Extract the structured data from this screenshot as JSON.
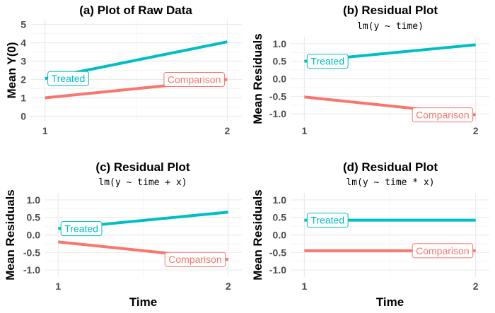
{
  "colors": {
    "treated": "#00BFC4",
    "comparison": "#F8766D",
    "grid_major": "#ebebeb",
    "grid_minor": "#f5f5f5"
  },
  "chart_data": [
    {
      "id": "a",
      "type": "line",
      "title": "(a) Plot of Raw Data",
      "subtitle": "",
      "xlabel": "",
      "ylabel": "Mean Y(0)",
      "x": [
        1,
        2
      ],
      "xlim": [
        0.92,
        2.08
      ],
      "ylim": [
        -0.25,
        5.25
      ],
      "yticks": [
        0,
        1,
        2,
        3,
        4,
        5
      ],
      "ytick_labels": [
        "0",
        "1",
        "2",
        "3",
        "4",
        "5"
      ],
      "xticks": [
        1,
        2
      ],
      "xtick_labels": [
        "1",
        "2"
      ],
      "series": [
        {
          "name": "Treated",
          "key": "treated",
          "values": [
            2.05,
            4.05
          ],
          "label_at": "start"
        },
        {
          "name": "Comparison",
          "key": "comparison",
          "values": [
            1.0,
            2.0
          ],
          "label_at": "end"
        }
      ]
    },
    {
      "id": "b",
      "type": "line",
      "title": "(b) Residual Plot",
      "subtitle": "lm(y ~ time)",
      "xlabel": "",
      "ylabel": "Mean Residuals",
      "x": [
        1,
        2
      ],
      "xlim": [
        0.92,
        2.08
      ],
      "ylim": [
        -1.2,
        1.2
      ],
      "yticks": [
        -1.0,
        -0.5,
        0.0,
        0.5,
        1.0
      ],
      "ytick_labels": [
        "-1.0",
        "-0.5",
        "0.0",
        "0.5",
        "1.0"
      ],
      "xticks": [
        1,
        2
      ],
      "xtick_labels": [
        "1",
        "2"
      ],
      "series": [
        {
          "name": "Treated",
          "key": "treated",
          "values": [
            0.5,
            0.97
          ],
          "label_at": "start"
        },
        {
          "name": "Comparison",
          "key": "comparison",
          "values": [
            -0.52,
            -1.03
          ],
          "label_at": "end"
        }
      ]
    },
    {
      "id": "c",
      "type": "line",
      "title": "(c) Residual Plot",
      "subtitle": "lm(y ~ time + x)",
      "xlabel": "Time",
      "ylabel": "Mean Residuals",
      "x": [
        1,
        2
      ],
      "xlim": [
        0.92,
        2.08
      ],
      "ylim": [
        -1.2,
        1.2
      ],
      "yticks": [
        -1.0,
        -0.5,
        0.0,
        0.5,
        1.0
      ],
      "ytick_labels": [
        "-1.0",
        "-0.5",
        "0.0",
        "0.5",
        "1.0"
      ],
      "xticks": [
        1,
        2
      ],
      "xtick_labels": [
        "1",
        "2"
      ],
      "series": [
        {
          "name": "Treated",
          "key": "treated",
          "values": [
            0.18,
            0.65
          ],
          "label_at": "start"
        },
        {
          "name": "Comparison",
          "key": "comparison",
          "values": [
            -0.2,
            -0.7
          ],
          "label_at": "end"
        }
      ]
    },
    {
      "id": "d",
      "type": "line",
      "title": "(d) Residual Plot",
      "subtitle": "lm(y ~ time * x)",
      "xlabel": "Time",
      "ylabel": "Mean Residuals",
      "x": [
        1,
        2
      ],
      "xlim": [
        0.92,
        2.08
      ],
      "ylim": [
        -1.2,
        1.2
      ],
      "yticks": [
        -1.0,
        -0.5,
        0.0,
        0.5,
        1.0
      ],
      "ytick_labels": [
        "-1.0",
        "-0.5",
        "0.0",
        "0.5",
        "1.0"
      ],
      "xticks": [
        1,
        2
      ],
      "xtick_labels": [
        "1",
        "2"
      ],
      "series": [
        {
          "name": "Treated",
          "key": "treated",
          "values": [
            0.42,
            0.42
          ],
          "label_at": "start"
        },
        {
          "name": "Comparison",
          "key": "comparison",
          "values": [
            -0.45,
            -0.45
          ],
          "label_at": "end"
        }
      ]
    }
  ]
}
